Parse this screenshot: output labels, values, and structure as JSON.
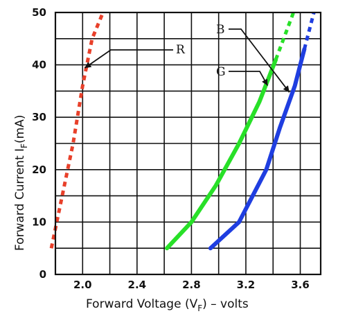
{
  "chart_data": {
    "type": "line",
    "title": "",
    "xlabel": "Forward Voltage (V",
    "xlabel_sub": "F",
    "xlabel_tail": ") – volts",
    "ylabel": "Forward Current I",
    "ylabel_sub": "F",
    "ylabel_tail": "(mA)",
    "xlim": [
      1.8,
      3.75
    ],
    "ylim": [
      0,
      50
    ],
    "x_ticks": [
      2.0,
      2.4,
      2.8,
      3.2,
      3.6
    ],
    "x_tick_labels": [
      "2.0",
      "2.4",
      "2.8",
      "3.2",
      "3.6"
    ],
    "y_ticks": [
      0,
      10,
      20,
      30,
      40,
      50
    ],
    "y_tick_labels": [
      "0",
      "10",
      "20",
      "30",
      "40",
      "50"
    ],
    "grid": true,
    "series": [
      {
        "name": "R",
        "color": "#e8402a",
        "dashed_from_index": 0,
        "points": [
          [
            1.77,
            5
          ],
          [
            1.85,
            15
          ],
          [
            1.93,
            25
          ],
          [
            2.0,
            36
          ],
          [
            2.07,
            45
          ],
          [
            2.15,
            50
          ]
        ]
      },
      {
        "name": "G",
        "color": "#28e028",
        "dashed_from_index": 5,
        "points": [
          [
            2.62,
            5
          ],
          [
            2.8,
            10
          ],
          [
            2.98,
            17
          ],
          [
            3.15,
            25
          ],
          [
            3.3,
            33
          ],
          [
            3.42,
            41
          ],
          [
            3.55,
            50
          ]
        ]
      },
      {
        "name": "B",
        "color": "#1f3ee0",
        "dashed_from_index": 5,
        "points": [
          [
            2.94,
            5
          ],
          [
            3.15,
            10
          ],
          [
            3.35,
            20
          ],
          [
            3.45,
            28
          ],
          [
            3.56,
            36
          ],
          [
            3.63,
            43
          ],
          [
            3.7,
            50
          ]
        ]
      }
    ],
    "annotations": [
      {
        "label": "R",
        "target": [
          2.0,
          39
        ]
      },
      {
        "label": "B",
        "target": [
          3.53,
          34.5
        ]
      },
      {
        "label": "G",
        "target": [
          3.36,
          35.5
        ]
      }
    ]
  }
}
